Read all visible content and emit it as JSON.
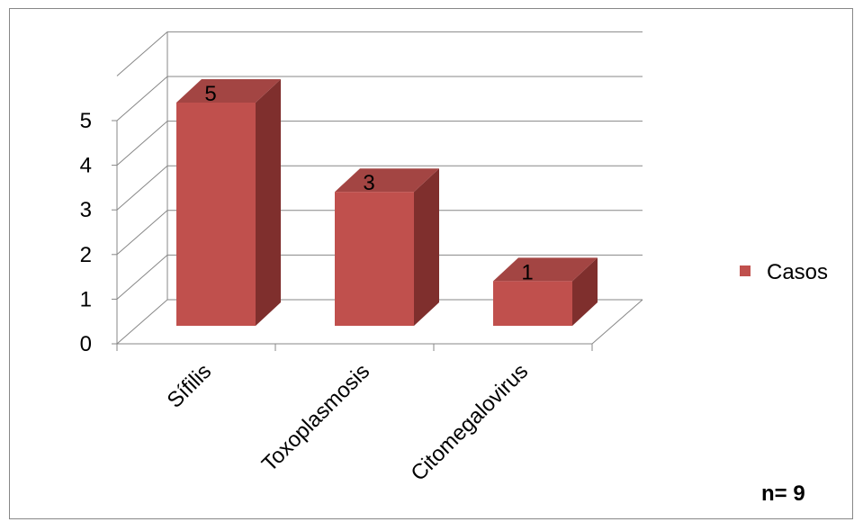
{
  "chart_data": {
    "type": "bar",
    "style": "3d-column",
    "categories": [
      "Sífilis",
      "Toxoplasmosis",
      "Citomegalovirus"
    ],
    "series": [
      {
        "name": "Casos",
        "values": [
          5,
          3,
          1
        ]
      }
    ],
    "ylim": [
      0,
      5
    ],
    "yticks": [
      "0",
      "1",
      "2",
      "3",
      "4",
      "5"
    ],
    "data_labels": [
      "5",
      "3",
      "1"
    ],
    "legend_position": "right",
    "grid": true,
    "colors": {
      "bar_front": "#C0504D",
      "bar_top": "#A34543",
      "bar_side": "#7F2F2D",
      "grid": "#878787"
    }
  },
  "annotation": "n= 9"
}
